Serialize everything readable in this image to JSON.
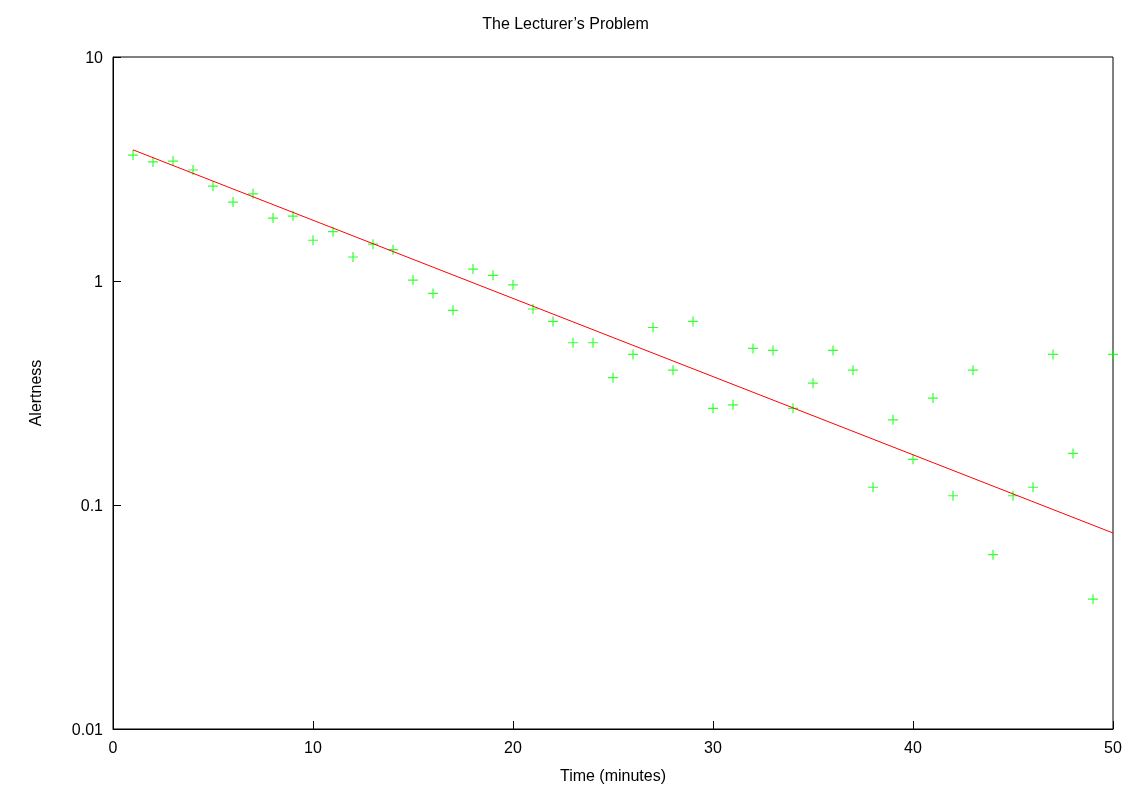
{
  "chart_data": {
    "type": "scatter",
    "title": "The Lecturer’s Problem",
    "xlabel": "Time (minutes)",
    "ylabel": "Alertness",
    "x": [
      1,
      2,
      3,
      4,
      5,
      6,
      7,
      8,
      9,
      10,
      11,
      12,
      13,
      14,
      15,
      16,
      17,
      18,
      19,
      20,
      21,
      22,
      23,
      24,
      25,
      26,
      27,
      28,
      29,
      30,
      31,
      32,
      33,
      34,
      35,
      36,
      37,
      38,
      39,
      40,
      41,
      42,
      43,
      44,
      45,
      46,
      47,
      48,
      49,
      50
    ],
    "series": [
      {
        "color": "#00ff00",
        "marker": "cross",
        "values": [
          3.65,
          3.4,
          3.43,
          3.13,
          2.65,
          2.25,
          2.45,
          1.91,
          1.95,
          1.52,
          1.66,
          1.28,
          1.46,
          1.38,
          1.01,
          0.88,
          0.74,
          1.13,
          1.06,
          0.96,
          0.75,
          0.66,
          0.53,
          0.53,
          0.37,
          0.47,
          0.62,
          0.4,
          0.66,
          0.27,
          0.28,
          0.5,
          0.49,
          0.27,
          0.35,
          0.49,
          0.4,
          0.12,
          0.24,
          0.16,
          0.3,
          0.11,
          0.4,
          0.06,
          0.11,
          0.12,
          0.47,
          0.17,
          0.038,
          0.47
        ]
      },
      {
        "type": "line",
        "color": "#ff0000",
        "marker": "none",
        "x": [
          1,
          50
        ],
        "values": [
          3.85,
          0.075
        ]
      }
    ],
    "log": "y",
    "xlim": [
      0,
      50
    ],
    "xticks": [
      0,
      10,
      20,
      30,
      40,
      50
    ],
    "ylim": [
      0.01,
      10
    ],
    "yticks": [
      0.01,
      0.1,
      1,
      10
    ],
    "grid": false
  }
}
